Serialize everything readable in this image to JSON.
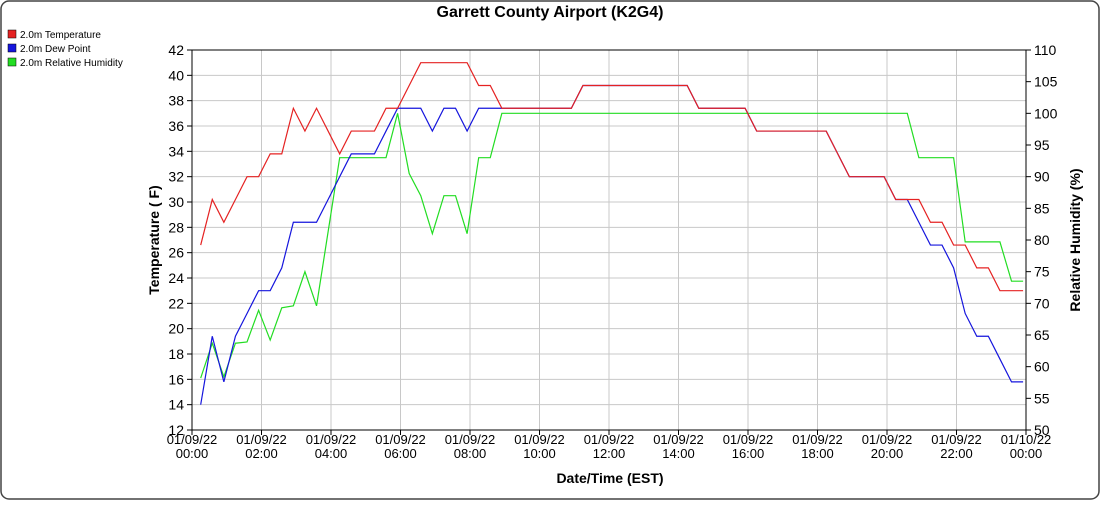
{
  "chart_data": {
    "type": "line",
    "title": "Garrett County Airport (K2G4)",
    "xlabel": "Date/Time (EST)",
    "ylabel": "Temperature ( F)",
    "y2label": "Relative Humidity (%)",
    "x": [
      "2022-01-09T00:15",
      "2022-01-09T00:35",
      "2022-01-09T00:55",
      "2022-01-09T01:15",
      "2022-01-09T01:35",
      "2022-01-09T01:55",
      "2022-01-09T02:15",
      "2022-01-09T02:35",
      "2022-01-09T02:55",
      "2022-01-09T03:15",
      "2022-01-09T03:35",
      "2022-01-09T03:55",
      "2022-01-09T04:15",
      "2022-01-09T04:35",
      "2022-01-09T04:55",
      "2022-01-09T05:15",
      "2022-01-09T05:35",
      "2022-01-09T05:55",
      "2022-01-09T06:15",
      "2022-01-09T06:35",
      "2022-01-09T06:55",
      "2022-01-09T07:15",
      "2022-01-09T07:35",
      "2022-01-09T07:55",
      "2022-01-09T08:15",
      "2022-01-09T08:35",
      "2022-01-09T08:55",
      "2022-01-09T09:15",
      "2022-01-09T09:35",
      "2022-01-09T09:55",
      "2022-01-09T10:15",
      "2022-01-09T10:35",
      "2022-01-09T10:55",
      "2022-01-09T11:15",
      "2022-01-09T11:35",
      "2022-01-09T11:55",
      "2022-01-09T12:15",
      "2022-01-09T12:35",
      "2022-01-09T12:55",
      "2022-01-09T13:15",
      "2022-01-09T13:35",
      "2022-01-09T13:55",
      "2022-01-09T14:15",
      "2022-01-09T14:35",
      "2022-01-09T14:55",
      "2022-01-09T15:15",
      "2022-01-09T15:35",
      "2022-01-09T15:55",
      "2022-01-09T16:15",
      "2022-01-09T16:35",
      "2022-01-09T16:55",
      "2022-01-09T17:15",
      "2022-01-09T17:35",
      "2022-01-09T17:55",
      "2022-01-09T18:15",
      "2022-01-09T18:35",
      "2022-01-09T18:55",
      "2022-01-09T19:15",
      "2022-01-09T19:35",
      "2022-01-09T19:55",
      "2022-01-09T20:15",
      "2022-01-09T20:35",
      "2022-01-09T20:55",
      "2022-01-09T21:15",
      "2022-01-09T21:35",
      "2022-01-09T21:55",
      "2022-01-09T22:15",
      "2022-01-09T22:35",
      "2022-01-09T22:55",
      "2022-01-09T23:15",
      "2022-01-09T23:35",
      "2022-01-09T23:55"
    ],
    "series": [
      {
        "name": "2.0m Relative Humidity",
        "color": "#22dd22",
        "axis": "y2",
        "values": [
          58.2,
          63.7,
          58.4,
          63.7,
          63.9,
          68.9,
          64.2,
          69.3,
          69.6,
          75,
          69.6,
          81.3,
          93,
          93,
          93,
          93,
          93,
          100,
          90.5,
          87,
          81,
          87,
          87,
          81,
          93,
          93,
          100,
          100,
          100,
          100,
          100,
          100,
          100,
          100,
          100,
          100,
          100,
          100,
          100,
          100,
          100,
          100,
          100,
          100,
          100,
          100,
          100,
          100,
          100,
          100,
          100,
          100,
          100,
          100,
          100,
          100,
          100,
          100,
          100,
          100,
          100,
          100,
          93,
          93,
          93,
          93,
          79.7,
          79.7,
          79.7,
          79.7,
          73.5,
          73.5
        ]
      },
      {
        "name": "2.0m Dew Point",
        "color": "#1515dd",
        "values": [
          14,
          19.4,
          15.8,
          19.4,
          21.2,
          23,
          23,
          24.8,
          28.4,
          28.4,
          28.4,
          30.2,
          32,
          33.8,
          33.8,
          33.8,
          35.6,
          37.4,
          37.4,
          37.4,
          35.6,
          37.4,
          37.4,
          35.6,
          37.4,
          37.4,
          37.4,
          37.4,
          37.4,
          37.4,
          37.4,
          37.4,
          37.4,
          39.2,
          39.2,
          39.2,
          39.2,
          39.2,
          39.2,
          39.2,
          39.2,
          39.2,
          39.2,
          37.4,
          37.4,
          37.4,
          37.4,
          37.4,
          35.6,
          35.6,
          35.6,
          35.6,
          35.6,
          35.6,
          35.6,
          33.8,
          32,
          32,
          32,
          32,
          30.2,
          30.2,
          28.4,
          26.6,
          26.6,
          24.8,
          21.2,
          19.4,
          19.4,
          17.6,
          15.8,
          15.8
        ]
      },
      {
        "name": "2.0m Temperature",
        "color": "#e52222",
        "values": [
          26.6,
          30.2,
          28.4,
          30.2,
          32,
          32,
          33.8,
          33.8,
          37.4,
          35.6,
          37.4,
          35.6,
          33.8,
          35.6,
          35.6,
          35.6,
          37.4,
          37.4,
          39.2,
          41,
          41,
          41,
          41,
          41,
          39.2,
          39.2,
          37.4,
          37.4,
          37.4,
          37.4,
          37.4,
          37.4,
          37.4,
          39.2,
          39.2,
          39.2,
          39.2,
          39.2,
          39.2,
          39.2,
          39.2,
          39.2,
          39.2,
          37.4,
          37.4,
          37.4,
          37.4,
          37.4,
          35.6,
          35.6,
          35.6,
          35.6,
          35.6,
          35.6,
          35.6,
          33.8,
          32,
          32,
          32,
          32,
          30.2,
          30.2,
          30.2,
          28.4,
          28.4,
          26.6,
          26.6,
          24.8,
          24.8,
          23,
          23,
          23
        ]
      }
    ],
    "xlim": [
      "2022-01-09T00:00",
      "2022-01-10T00:00"
    ],
    "xticks": [
      {
        "value": "2022-01-09T00:00",
        "label": "01/09/22 00:00"
      },
      {
        "value": "2022-01-09T02:00",
        "label": "01/09/22 02:00"
      },
      {
        "value": "2022-01-09T04:00",
        "label": "01/09/22 04:00"
      },
      {
        "value": "2022-01-09T06:00",
        "label": "01/09/22 06:00"
      },
      {
        "value": "2022-01-09T08:00",
        "label": "01/09/22 08:00"
      },
      {
        "value": "2022-01-09T10:00",
        "label": "01/09/22 10:00"
      },
      {
        "value": "2022-01-09T12:00",
        "label": "01/09/22 12:00"
      },
      {
        "value": "2022-01-09T14:00",
        "label": "01/09/22 14:00"
      },
      {
        "value": "2022-01-09T16:00",
        "label": "01/09/22 16:00"
      },
      {
        "value": "2022-01-09T18:00",
        "label": "01/09/22 18:00"
      },
      {
        "value": "2022-01-09T20:00",
        "label": "01/09/22 20:00"
      },
      {
        "value": "2022-01-09T22:00",
        "label": "01/09/22 22:00"
      },
      {
        "value": "2022-01-10T00:00",
        "label": "01/10/22 00:00"
      }
    ],
    "ylim": [
      12,
      42
    ],
    "yticks": [
      12,
      14,
      16,
      18,
      20,
      22,
      24,
      26,
      28,
      30,
      32,
      34,
      36,
      38,
      40,
      42
    ],
    "y2lim": [
      50,
      110
    ],
    "y2ticks": [
      50,
      55,
      60,
      65,
      70,
      75,
      80,
      85,
      90,
      95,
      100,
      105,
      110
    ],
    "grid": true,
    "legend": "top-left"
  }
}
